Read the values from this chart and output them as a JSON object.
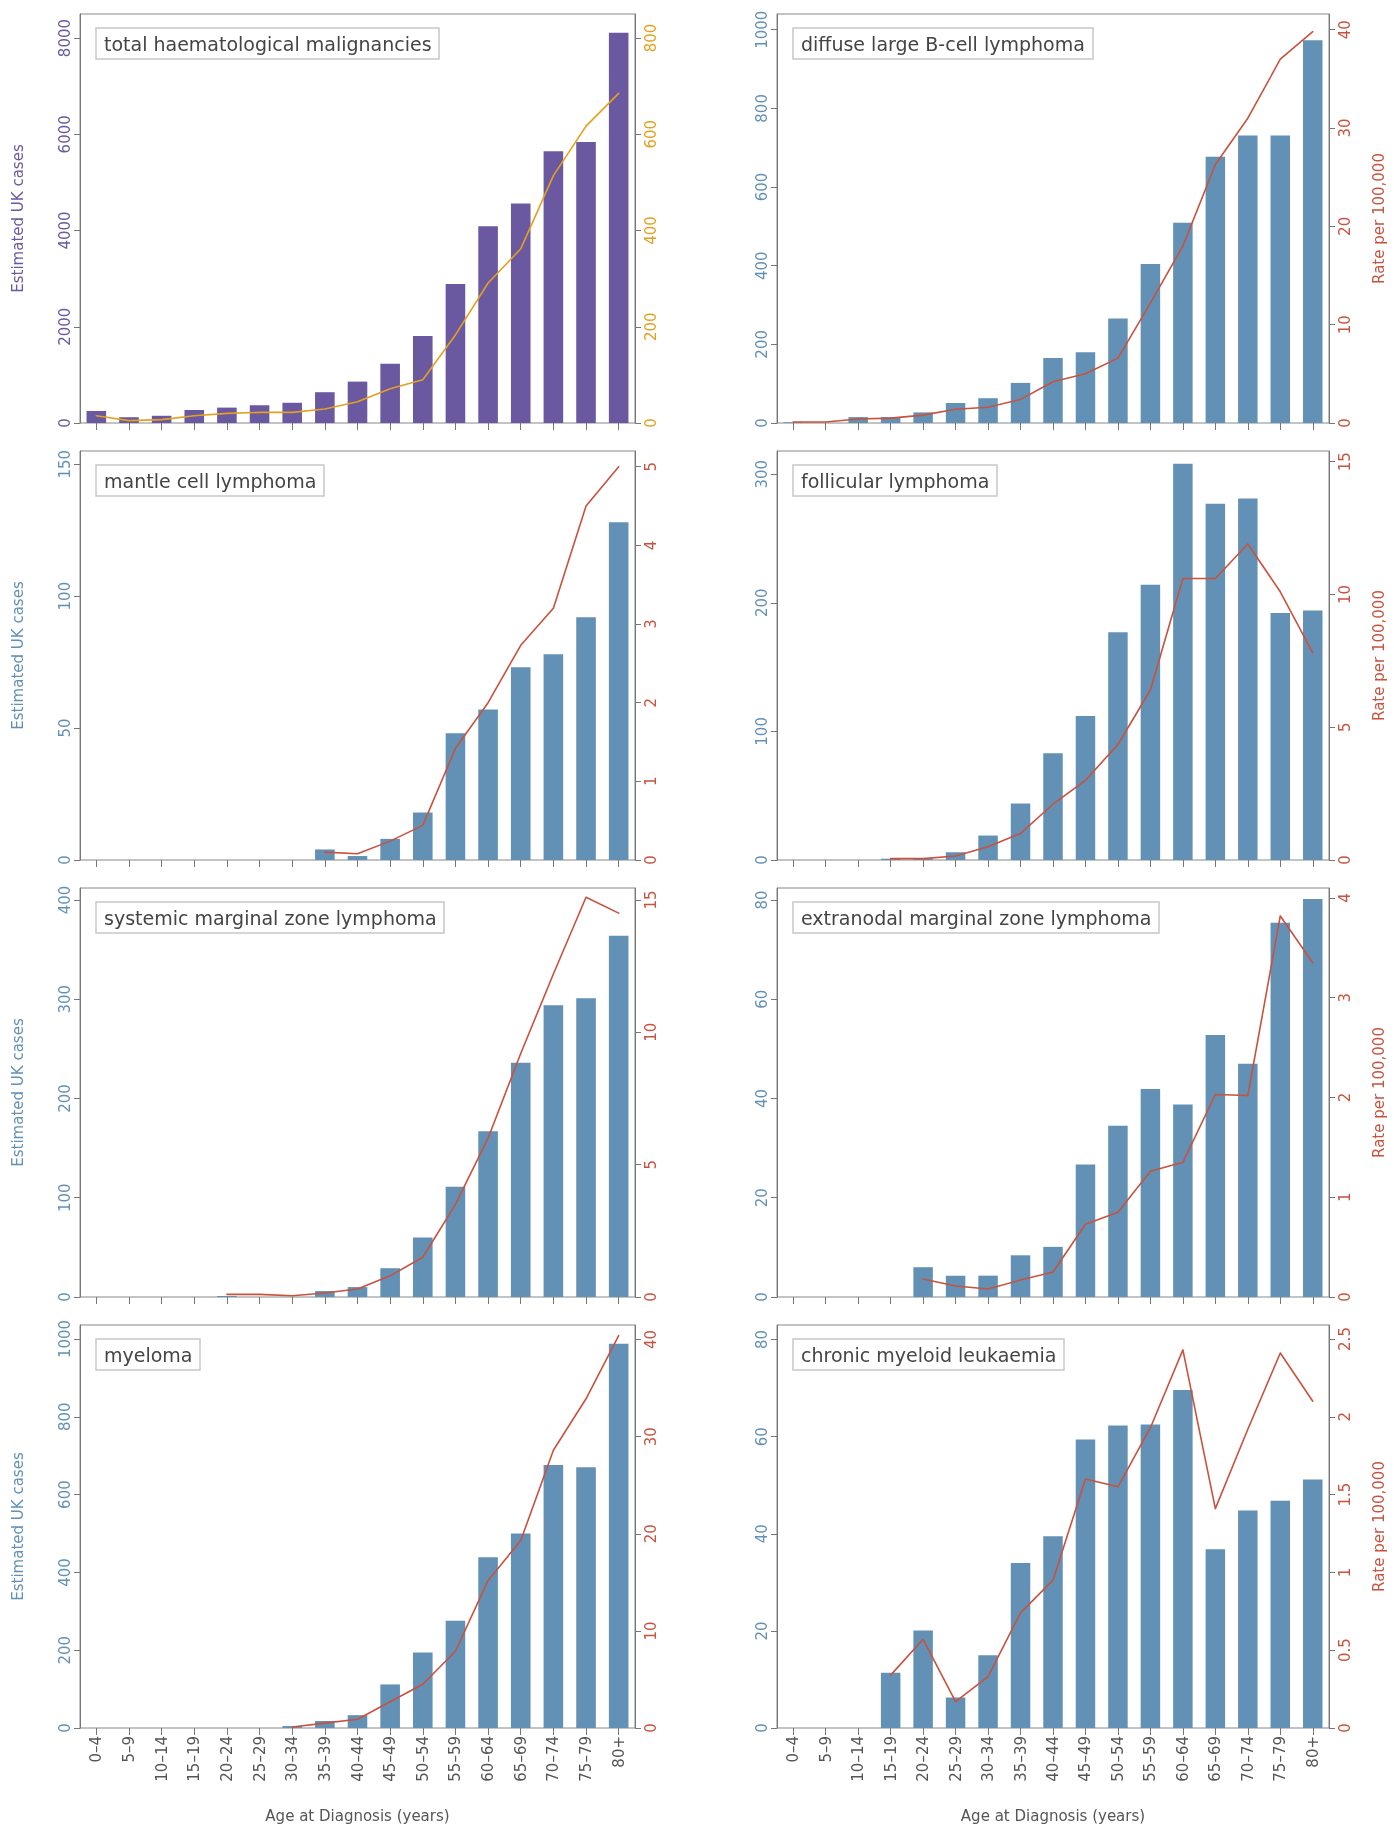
{
  "chart_data": [
    {
      "type": "bar",
      "title": "total haematological malignancies",
      "ylabel": "Estimated UK cases",
      "categories": [
        null,
        null,
        null,
        null,
        null,
        null,
        null,
        null,
        null,
        null,
        null,
        null,
        null,
        null,
        null,
        null,
        null
      ],
      "ylim": [
        0,
        8500
      ],
      "yticks": [
        0,
        2000,
        4000,
        6000,
        8000
      ],
      "y2lim": [
        0,
        850
      ],
      "y2ticks": [
        0,
        200,
        400,
        600,
        800
      ],
      "tick_labels": "y",
      "grid": false,
      "marker": "none",
      "line_style": "solid",
      "series": [
        {
          "type": "bar",
          "color": "#6a58a0",
          "values": [
            250,
            120,
            150,
            270,
            320,
            370,
            420,
            640,
            860,
            1230,
            1810,
            2890,
            4090,
            4560,
            5650,
            5840,
            8110
          ]
        },
        {
          "type": "line",
          "axis": "y2",
          "color": "#e3a11f",
          "values": [
            15,
            5,
            7,
            15,
            20,
            22,
            22,
            29,
            44,
            71,
            90,
            183,
            291,
            362,
            514,
            617,
            685
          ]
        }
      ]
    },
    {
      "type": "bar",
      "title": "diffuse large B-cell lymphoma",
      "y2label": "Rate per 100,000",
      "categories": [
        null,
        null,
        null,
        null,
        null,
        null,
        null,
        null,
        null,
        null,
        null,
        null,
        null,
        null,
        null,
        null,
        null
      ],
      "ylim": [
        0,
        1040
      ],
      "yticks": [
        0,
        200,
        400,
        600,
        800,
        1000
      ],
      "y2lim": [
        0,
        41.6
      ],
      "y2ticks": [
        0,
        10,
        20,
        30,
        40
      ],
      "tick_labels": "y",
      "grid": false,
      "marker": "none",
      "line_style": "solid",
      "series": [
        {
          "type": "bar",
          "color": "#6291b5",
          "values": [
            2,
            null,
            15,
            15,
            27,
            51,
            63,
            102,
            165,
            180,
            266,
            404,
            509,
            677,
            731,
            731,
            973
          ]
        },
        {
          "type": "line",
          "axis": "y2",
          "color": "#c8523e",
          "values": [
            0.1,
            0.1,
            0.4,
            0.5,
            0.8,
            1.4,
            1.6,
            2.4,
            4.2,
            5.0,
            6.6,
            12.2,
            18,
            26.3,
            31,
            37,
            39.8
          ]
        }
      ]
    },
    {
      "type": "bar",
      "title": "mantle cell lymphoma",
      "ylabel": "Estimated UK cases",
      "categories": [
        null,
        null,
        null,
        null,
        null,
        null,
        null,
        null,
        null,
        null,
        null,
        null,
        null,
        null,
        null,
        null,
        null
      ],
      "ylim": [
        0,
        155
      ],
      "yticks": [
        0,
        50,
        100,
        150
      ],
      "y2lim": [
        0,
        5.2
      ],
      "y2ticks": [
        0,
        1,
        2,
        3,
        4,
        5
      ],
      "tick_labels": "y",
      "grid": false,
      "marker": "none",
      "line_style": "solid",
      "series": [
        {
          "type": "bar",
          "color": "#6291b5",
          "values": [
            null,
            null,
            null,
            null,
            null,
            null,
            null,
            4,
            1.5,
            8,
            18,
            48,
            57,
            73,
            78,
            92,
            128
          ]
        },
        {
          "type": "line",
          "axis": "y2",
          "color": "#c8523e",
          "values": [
            null,
            null,
            null,
            null,
            null,
            null,
            null,
            0.1,
            0.08,
            0.24,
            0.44,
            1.42,
            2.0,
            2.73,
            3.2,
            4.5,
            5.0
          ]
        }
      ]
    },
    {
      "type": "bar",
      "title": "follicular lymphoma",
      "y2label": "Rate per 100,000",
      "categories": [
        null,
        null,
        null,
        null,
        null,
        null,
        null,
        null,
        null,
        null,
        null,
        null,
        null,
        null,
        null,
        null,
        null
      ],
      "ylim": [
        0,
        318
      ],
      "yticks": [
        0,
        100,
        200,
        300
      ],
      "y2lim": [
        0,
        15.4
      ],
      "y2ticks": [
        0,
        5,
        10,
        15
      ],
      "tick_labels": "y",
      "grid": false,
      "marker": "none",
      "line_style": "solid",
      "series": [
        {
          "type": "bar",
          "color": "#6291b5",
          "values": [
            null,
            null,
            null,
            1,
            1,
            6,
            19,
            44,
            83,
            112,
            177,
            214,
            308,
            277,
            281,
            192,
            194
          ]
        },
        {
          "type": "line",
          "axis": "y2",
          "color": "#c8523e",
          "values": [
            null,
            null,
            null,
            0.05,
            0.05,
            0.15,
            0.5,
            1.0,
            2.1,
            3.0,
            4.35,
            6.4,
            10.6,
            10.6,
            11.9,
            10.1,
            7.8
          ]
        }
      ]
    },
    {
      "type": "bar",
      "title": "systemic marginal zone lymphoma",
      "ylabel": "Estimated UK cases",
      "categories": [
        null,
        null,
        null,
        null,
        null,
        null,
        null,
        null,
        null,
        null,
        null,
        null,
        null,
        null,
        null,
        null,
        null
      ],
      "ylim": [
        0,
        412
      ],
      "yticks": [
        0,
        100,
        200,
        300,
        400
      ],
      "y2lim": [
        0,
        15.45
      ],
      "y2ticks": [
        0,
        5,
        10,
        15
      ],
      "tick_labels": "y",
      "grid": false,
      "marker": "none",
      "line_style": "solid",
      "series": [
        {
          "type": "bar",
          "color": "#6291b5",
          "values": [
            null,
            null,
            null,
            null,
            1,
            null,
            null,
            6,
            10,
            29,
            60,
            111,
            167,
            236,
            294,
            301,
            364
          ]
        },
        {
          "type": "line",
          "axis": "y2",
          "color": "#c8523e",
          "values": [
            null,
            null,
            null,
            null,
            0.1,
            0.1,
            0.05,
            0.15,
            0.3,
            0.8,
            1.5,
            3.5,
            6.0,
            9.2,
            12.2,
            15.1,
            14.5
          ]
        }
      ]
    },
    {
      "type": "bar",
      "title": "extranodal marginal zone lymphoma",
      "y2label": "Rate per 100,000",
      "categories": [
        null,
        null,
        null,
        null,
        null,
        null,
        null,
        null,
        null,
        null,
        null,
        null,
        null,
        null,
        null,
        null,
        null
      ],
      "ylim": [
        0,
        82.4
      ],
      "yticks": [
        0,
        20,
        40,
        60,
        80
      ],
      "y2lim": [
        0,
        4.1
      ],
      "y2ticks": [
        0,
        1,
        2,
        3,
        4
      ],
      "tick_labels": "y",
      "grid": false,
      "marker": "none",
      "line_style": "solid",
      "series": [
        {
          "type": "bar",
          "color": "#6291b5",
          "values": [
            null,
            null,
            null,
            null,
            6,
            4.3,
            4.3,
            8.4,
            10.1,
            26.7,
            34.5,
            41.9,
            38.8,
            52.8,
            47,
            75.4,
            80.2
          ]
        },
        {
          "type": "line",
          "axis": "y2",
          "color": "#c8523e",
          "values": [
            null,
            null,
            null,
            null,
            0.18,
            0.11,
            0.08,
            0.17,
            0.25,
            0.73,
            0.85,
            1.26,
            1.35,
            2.03,
            2.02,
            3.82,
            3.35
          ]
        }
      ]
    },
    {
      "type": "bar",
      "title": "myeloma",
      "ylabel": "Estimated UK cases",
      "xlabel": "Age at Diagnosis (years)",
      "categories": [
        "0–4",
        "5–9",
        "10–14",
        "15–19",
        "20–24",
        "25–29",
        "30–34",
        "35–39",
        "40–44",
        "45–49",
        "50–54",
        "55–59",
        "60–64",
        "65–69",
        "70–74",
        "75–79",
        "80+"
      ],
      "ylim": [
        0,
        1036
      ],
      "yticks": [
        0,
        200,
        400,
        600,
        800,
        1000
      ],
      "y2lim": [
        0,
        41.5
      ],
      "y2ticks": [
        0,
        10,
        20,
        30,
        40
      ],
      "grid": false,
      "marker": "none",
      "line_style": "solid",
      "series": [
        {
          "type": "bar",
          "color": "#6291b5",
          "values": [
            null,
            null,
            null,
            null,
            null,
            null,
            5,
            18,
            33,
            112,
            194,
            276,
            439,
            500,
            676,
            670,
            988
          ]
        },
        {
          "type": "line",
          "axis": "y2",
          "color": "#c8523e",
          "values": [
            null,
            null,
            null,
            null,
            null,
            null,
            0.1,
            0.5,
            0.9,
            2.7,
            4.5,
            7.9,
            15.2,
            19.3,
            28.6,
            33.9,
            40.4
          ]
        }
      ]
    },
    {
      "type": "bar",
      "title": "chronic myeloid leukaemia",
      "y2label": "Rate per 100,000",
      "xlabel": "Age at Diagnosis (years)",
      "categories": [
        "0–4",
        "5–9",
        "10–14",
        "15–19",
        "20–24",
        "25–29",
        "30–34",
        "35–39",
        "40–44",
        "45–49",
        "50–54",
        "55–59",
        "60–64",
        "65–69",
        "70–74",
        "75–79",
        "80+"
      ],
      "ylim": [
        0,
        83
      ],
      "yticks": [
        0,
        20,
        40,
        60,
        80
      ],
      "y2lim": [
        0,
        2.59
      ],
      "y2ticks": [
        0,
        0.5,
        1,
        1.5,
        2,
        2.5
      ],
      "grid": false,
      "marker": "none",
      "line_style": "solid",
      "series": [
        {
          "type": "bar",
          "color": "#6291b5",
          "values": [
            null,
            null,
            null,
            11.4,
            20.1,
            6.3,
            15,
            34,
            39.5,
            59.4,
            62.3,
            62.5,
            69.6,
            36.8,
            44.8,
            46.8,
            51.2
          ]
        },
        {
          "type": "line",
          "axis": "y2",
          "color": "#c8523e",
          "values": [
            null,
            null,
            null,
            0.34,
            0.57,
            0.17,
            0.33,
            0.74,
            0.95,
            1.6,
            1.55,
            1.93,
            2.43,
            1.41,
            1.92,
            2.41,
            2.1
          ]
        }
      ]
    }
  ]
}
